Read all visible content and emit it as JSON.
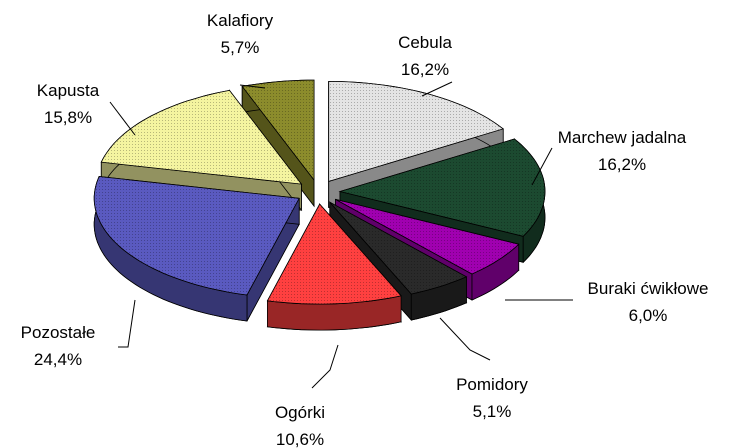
{
  "chart_data": {
    "type": "pie3d",
    "categories": [
      "Cebula",
      "Marchew jadalna",
      "Buraki ćwikłowe",
      "Pomidory",
      "Ogórki",
      "Pozostałe",
      "Kapusta",
      "Kalafiory"
    ],
    "values": [
      16.2,
      16.2,
      6.0,
      5.1,
      10.6,
      24.4,
      15.8,
      5.7
    ],
    "value_labels": [
      "16,2%",
      "16,2%",
      "6,0%",
      "5,1%",
      "10,6%",
      "24,4%",
      "15,8%",
      "5,7%"
    ],
    "colors": [
      "#e4e4e4",
      "#1c4a30",
      "#a000b0",
      "#2a2a2a",
      "#ff4040",
      "#5a5ac0",
      "#f4f4a0",
      "#8c8c2c"
    ]
  }
}
